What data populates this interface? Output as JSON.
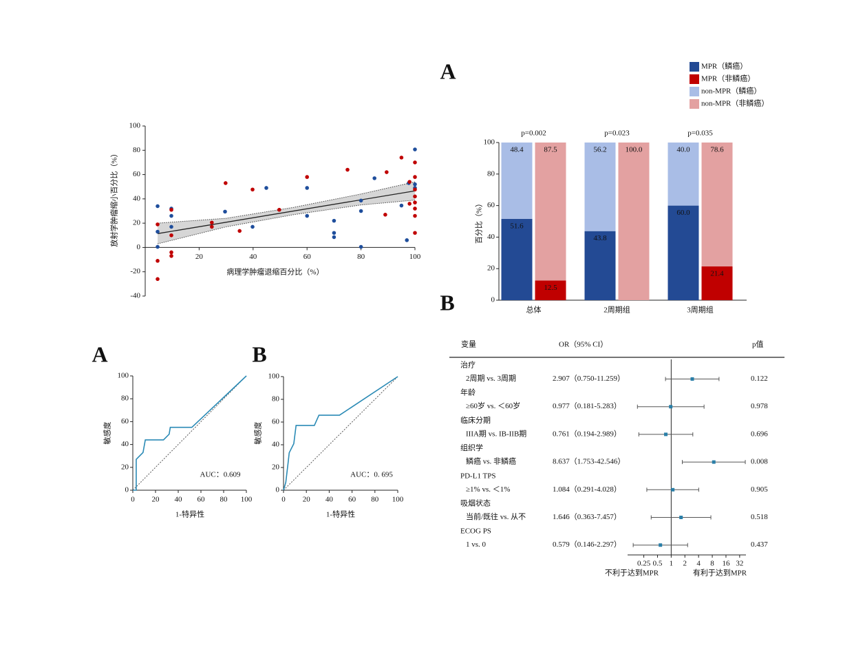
{
  "chart_data": [
    {
      "type": "scatter",
      "xlabel": "病理学肿瘤退缩百分比（%）",
      "ylabel": "放射学肿瘤缩小百分比（%）",
      "xlim": [
        0,
        100
      ],
      "ylim": [
        -40,
        100
      ],
      "xticks": [
        20,
        40,
        60,
        80,
        100
      ],
      "yticks": [
        -40,
        -20,
        0,
        20,
        40,
        60,
        80,
        100
      ],
      "series": [
        {
          "color": "#1f4e9c",
          "x": [
            4.6,
            4.6,
            4.6,
            9.7,
            9.7,
            9.7,
            29.6,
            39.8,
            44.9,
            60,
            60,
            70,
            70,
            70,
            80,
            80,
            80,
            85,
            95,
            97,
            97.7,
            100,
            100,
            100
          ],
          "y": [
            34,
            13,
            0.5,
            32,
            26,
            17,
            29.5,
            17,
            49,
            49,
            26,
            22,
            12,
            8.5,
            30,
            38.6,
            0.5,
            57,
            34.5,
            6,
            53,
            80.7,
            52,
            49
          ]
        },
        {
          "color": "#c00000",
          "x": [
            4.6,
            4.6,
            4.6,
            9.7,
            9.7,
            9.7,
            9.7,
            24.7,
            24.7,
            29.8,
            35,
            39.8,
            49.7,
            60,
            75,
            89.5,
            89,
            95,
            98,
            98,
            100,
            100,
            100,
            100,
            100,
            100,
            100,
            100
          ],
          "y": [
            19,
            -11,
            -26,
            31,
            10,
            -4,
            -7,
            20.5,
            17,
            53,
            13.6,
            47.7,
            31,
            58,
            64,
            62,
            27,
            74,
            54,
            36,
            70,
            47.7,
            42,
            37,
            32,
            26,
            12,
            58
          ]
        }
      ],
      "fit": {
        "x": [
          4.6,
          100
        ],
        "y": [
          11.4,
          46.6
        ]
      },
      "band": {
        "x": [
          4.6,
          30,
          55,
          80,
          100
        ],
        "lower": [
          3,
          17,
          27,
          35,
          39
        ],
        "upper": [
          20,
          24,
          33,
          44,
          54
        ]
      }
    },
    {
      "type": "bar",
      "panel": "A",
      "ylabel": "百分比（%）",
      "ylim": [
        0,
        100
      ],
      "yticks": [
        0,
        20,
        40,
        60,
        80,
        100
      ],
      "categories": [
        "总体",
        "2周期组",
        "3周期组"
      ],
      "annotations": [
        "p=0.002",
        "p=0.023",
        "p=0.035"
      ],
      "series": [
        {
          "name": "MPR（鳞癌）",
          "color": "#234a94",
          "values": [
            51.6,
            43.8,
            60.0
          ],
          "value_labels": [
            "51.6",
            "43.8",
            "60.0"
          ]
        },
        {
          "name": "MPR（非鳞癌）",
          "color": "#c00000",
          "values": [
            12.5,
            0,
            21.4
          ],
          "value_labels": [
            "12.5",
            null,
            "21.4"
          ]
        },
        {
          "name": "non-MPR（鳞癌）",
          "color": "#a9bde6",
          "values": [
            48.4,
            56.2,
            40.0
          ],
          "value_labels": [
            "48.4",
            "56.2",
            "40.0"
          ]
        },
        {
          "name": "non-MPR（非鳞癌）",
          "color": "#e3a1a1",
          "values": [
            87.5,
            100.0,
            78.6
          ],
          "value_labels": [
            "87.5",
            "100.0",
            "78.6"
          ]
        }
      ]
    },
    {
      "type": "line",
      "panel": "A",
      "xlabel": "1-特异性",
      "ylabel": "敏感度",
      "annotation": "AUC：0.609",
      "xlim": [
        0,
        100
      ],
      "ylim": [
        0,
        100
      ],
      "xticks": [
        0,
        20,
        40,
        60,
        80,
        100
      ],
      "yticks": [
        0,
        20,
        40,
        60,
        80,
        100
      ],
      "reference_line": true,
      "series": [
        {
          "color": "#2a8ab5",
          "x": [
            0,
            3,
            3,
            9,
            11,
            27,
            32,
            33,
            52,
            100
          ],
          "y": [
            0,
            0,
            27,
            33,
            44,
            44,
            49,
            55,
            55,
            100
          ]
        }
      ]
    },
    {
      "type": "line",
      "panel": "B",
      "xlabel": "1-特异性",
      "ylabel": "敏感度",
      "annotation": "AUC：0. 695",
      "xlim": [
        0,
        100
      ],
      "ylim": [
        0,
        100
      ],
      "xticks": [
        0,
        20,
        40,
        60,
        80,
        100
      ],
      "yticks": [
        0,
        20,
        40,
        60,
        80,
        100
      ],
      "reference_line": true,
      "series": [
        {
          "color": "#2a8ab5",
          "x": [
            0,
            2,
            4,
            5,
            9,
            11,
            27,
            31,
            49,
            100
          ],
          "y": [
            0,
            7,
            24,
            33,
            41,
            57,
            57,
            66,
            66,
            100
          ]
        }
      ]
    },
    {
      "type": "forest",
      "panel": "B",
      "columns": [
        "变量",
        "OR（95% CI）",
        "p值"
      ],
      "log": true,
      "xlim": [
        0.11,
        44
      ],
      "xticks": [
        0.25,
        0.5,
        1,
        2,
        4,
        8,
        16,
        32
      ],
      "reference": 1,
      "color": "#2a7fa8",
      "annotations": [
        "不利于达到MPR",
        "有利于达到MPR"
      ],
      "rows": [
        {
          "group": "治疗",
          "label": "2周期 vs. 3周期",
          "or": 2.907,
          "lower": 0.75,
          "upper": 11.259,
          "or_label": "2.907（0.750-11.259）",
          "p": 0.122
        },
        {
          "group": "年龄",
          "label": "≥60岁 vs. ＜60岁",
          "or": 0.977,
          "lower": 0.181,
          "upper": 5.283,
          "or_label": "0.977（0.181-5.283）",
          "p": 0.978
        },
        {
          "group": "临床分期",
          "label": "IIIA期 vs. IB-IIB期",
          "or": 0.761,
          "lower": 0.194,
          "upper": 2.989,
          "or_label": "0.761（0.194-2.989）",
          "p": 0.696
        },
        {
          "group": "组织学",
          "label": "鳞癌 vs. 非鳞癌",
          "or": 8.637,
          "lower": 1.753,
          "upper": 42.546,
          "or_label": "8.637（1.753-42.546）",
          "p": 0.008
        },
        {
          "group": "PD-L1 TPS",
          "label": "≥1% vs. ＜1%",
          "or": 1.084,
          "lower": 0.291,
          "upper": 4.028,
          "or_label": "1.084（0.291-4.028）",
          "p": 0.905
        },
        {
          "group": "吸烟状态",
          "label": "当前/既往 vs. 从不",
          "or": 1.646,
          "lower": 0.363,
          "upper": 7.457,
          "or_label": "1.646（0.363-7.457）",
          "p": 0.518
        },
        {
          "group": "ECOG PS",
          "label": "1 vs. 0",
          "or": 0.579,
          "lower": 0.146,
          "upper": 2.297,
          "or_label": "0.579（0.146-2.297）",
          "p": 0.437
        }
      ]
    }
  ]
}
